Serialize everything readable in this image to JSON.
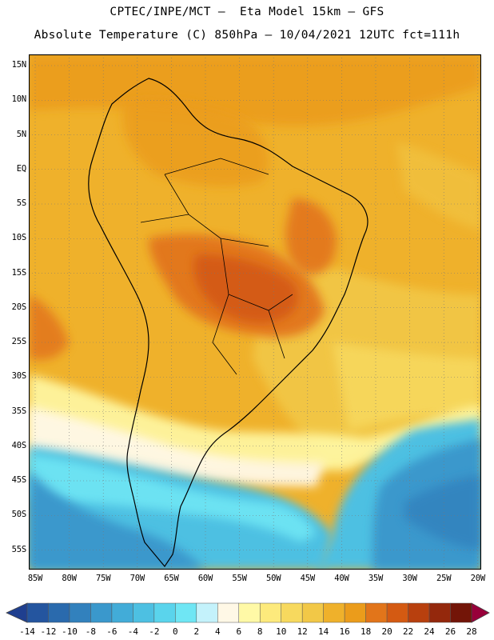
{
  "header": {
    "line1": "CPTEC/INPE/MCT —  Eta Model 15km — GFS",
    "line2": "Absolute Temperature (C) 850hPa — 10/04/2021 12UTC fct=111h"
  },
  "map": {
    "lat_labels": [
      "15N",
      "10N",
      "5N",
      "EQ",
      "5S",
      "10S",
      "15S",
      "20S",
      "25S",
      "30S",
      "35S",
      "40S",
      "45S",
      "50S",
      "55S"
    ],
    "lon_labels": [
      "85W",
      "80W",
      "75W",
      "70W",
      "65W",
      "60W",
      "55W",
      "50W",
      "45W",
      "40W",
      "35W",
      "30W",
      "25W",
      "20W"
    ]
  },
  "colorbar": {
    "labels": [
      "-14",
      "-12",
      "-10",
      "-8",
      "-6",
      "-4",
      "-2",
      "0",
      "2",
      "4",
      "6",
      "8",
      "10",
      "12",
      "14",
      "16",
      "18",
      "20",
      "22",
      "24",
      "26",
      "28"
    ],
    "colors": [
      "#1f3f8f",
      "#24559f",
      "#2a6aad",
      "#3281bd",
      "#3a98cc",
      "#42acd8",
      "#4dc0e2",
      "#5ad4ec",
      "#6fe6f4",
      "#c4f2fb",
      "#fff8e6",
      "#fff9a6",
      "#fdea7c",
      "#f7d95e",
      "#f2c847",
      "#efb12b",
      "#eb9c1b",
      "#e2751a",
      "#d45a12",
      "#b8400e",
      "#94280c",
      "#731508",
      "#98003a"
    ]
  }
}
